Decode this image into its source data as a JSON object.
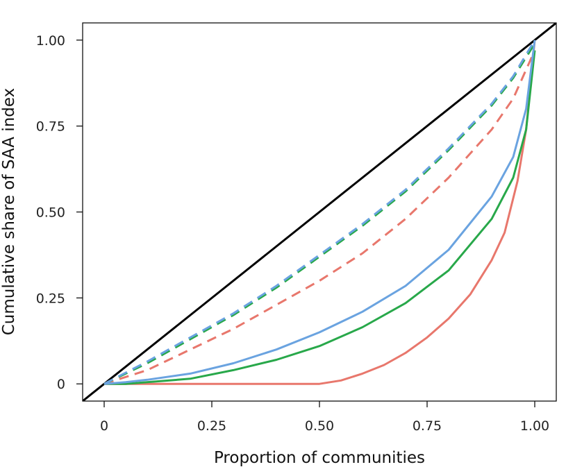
{
  "chart_data": {
    "type": "line",
    "title": "",
    "xlabel": "Proportion of communities",
    "ylabel": "Cumulative share of SAA index",
    "xlim": [
      -0.05,
      1.05
    ],
    "ylim": [
      -0.05,
      1.05
    ],
    "x_ticks": [
      {
        "value": 0,
        "label": "0"
      },
      {
        "value": 0.25,
        "label": "0.25"
      },
      {
        "value": 0.5,
        "label": "0.50"
      },
      {
        "value": 0.75,
        "label": "0.75"
      },
      {
        "value": 1.0,
        "label": "1.00"
      }
    ],
    "y_ticks": [
      {
        "value": 0,
        "label": "0"
      },
      {
        "value": 0.25,
        "label": "0.25"
      },
      {
        "value": 0.5,
        "label": "0.50"
      },
      {
        "value": 0.75,
        "label": "0.75"
      },
      {
        "value": 1.0,
        "label": "1.00"
      }
    ],
    "grid": false,
    "legend": "none",
    "series": [
      {
        "style": "solid",
        "color": "#000000",
        "x": [
          -0.05,
          1.05
        ],
        "y": [
          -0.05,
          1.05
        ]
      },
      {
        "style": "dashed",
        "color": "#e8776c",
        "x": [
          0,
          0.1,
          0.2,
          0.3,
          0.4,
          0.5,
          0.6,
          0.7,
          0.8,
          0.9,
          0.95,
          1.0
        ],
        "y": [
          0,
          0.04,
          0.1,
          0.16,
          0.23,
          0.3,
          0.38,
          0.48,
          0.6,
          0.74,
          0.83,
          0.97
        ]
      },
      {
        "style": "dashed",
        "color": "#28a84a",
        "x": [
          0,
          0.1,
          0.2,
          0.3,
          0.4,
          0.5,
          0.6,
          0.7,
          0.8,
          0.9,
          0.95,
          1.0
        ],
        "y": [
          0,
          0.06,
          0.13,
          0.2,
          0.28,
          0.37,
          0.46,
          0.56,
          0.68,
          0.81,
          0.89,
          0.99
        ]
      },
      {
        "style": "dashed",
        "color": "#6aa3e0",
        "x": [
          0,
          0.1,
          0.2,
          0.3,
          0.4,
          0.5,
          0.6,
          0.7,
          0.8,
          0.9,
          0.95,
          1.0
        ],
        "y": [
          0,
          0.065,
          0.135,
          0.205,
          0.285,
          0.375,
          0.465,
          0.565,
          0.685,
          0.815,
          0.895,
          1.0
        ]
      },
      {
        "style": "solid",
        "color": "#e8776c",
        "x": [
          0,
          0.5,
          0.55,
          0.6,
          0.65,
          0.7,
          0.75,
          0.8,
          0.85,
          0.9,
          0.93,
          0.96,
          0.98,
          1.0
        ],
        "y": [
          0,
          0,
          0.01,
          0.03,
          0.055,
          0.09,
          0.135,
          0.19,
          0.26,
          0.36,
          0.44,
          0.59,
          0.74,
          1.0
        ]
      },
      {
        "style": "solid",
        "color": "#28a84a",
        "x": [
          0,
          0.05,
          0.1,
          0.2,
          0.3,
          0.4,
          0.5,
          0.6,
          0.7,
          0.8,
          0.9,
          0.95,
          0.98,
          1.0
        ],
        "y": [
          0,
          0,
          0.005,
          0.015,
          0.04,
          0.07,
          0.11,
          0.165,
          0.235,
          0.33,
          0.48,
          0.6,
          0.74,
          0.97
        ]
      },
      {
        "style": "solid",
        "color": "#6aa3e0",
        "x": [
          0,
          0.05,
          0.1,
          0.2,
          0.3,
          0.4,
          0.5,
          0.6,
          0.7,
          0.8,
          0.9,
          0.95,
          0.98,
          1.0
        ],
        "y": [
          0,
          0.005,
          0.012,
          0.03,
          0.06,
          0.1,
          0.15,
          0.21,
          0.285,
          0.39,
          0.545,
          0.66,
          0.8,
          1.0
        ]
      }
    ]
  }
}
